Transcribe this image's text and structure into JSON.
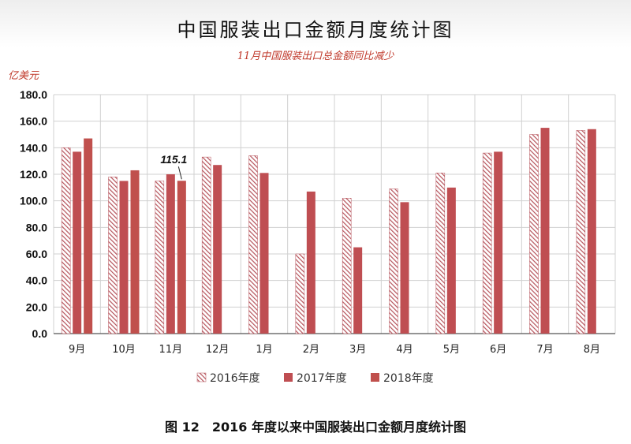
{
  "caption": "图 12　2016 年度以来中国服装出口金额月度统计图",
  "chart_data": {
    "type": "bar",
    "title": "中国服装出口金额月度统计图",
    "subtitle": "11月中国服装出口总金额同比减少",
    "ylabel": "亿美元",
    "xlabel": "",
    "ylim": [
      0,
      180
    ],
    "yticks": [
      "0.0",
      "20.0",
      "40.0",
      "60.0",
      "80.0",
      "100.0",
      "120.0",
      "140.0",
      "160.0",
      "180.0"
    ],
    "grid": true,
    "legend_position": "bottom",
    "categories": [
      "9月",
      "10月",
      "11月",
      "12月",
      "1月",
      "2月",
      "3月",
      "4月",
      "5月",
      "6月",
      "7月",
      "8月"
    ],
    "series": [
      {
        "name": "2016年度",
        "color": "#b5525a",
        "pattern": "hatched",
        "values": [
          140,
          118,
          115,
          133,
          134,
          60,
          102,
          109,
          121,
          136,
          150,
          153
        ]
      },
      {
        "name": "2017年度",
        "color": "#bf4e52",
        "pattern": "solid",
        "values": [
          137,
          115,
          120,
          127,
          121,
          107,
          65,
          99,
          110,
          137,
          155,
          154
        ]
      },
      {
        "name": "2018年度",
        "color": "#c0504d",
        "pattern": "solid",
        "values": [
          147,
          123,
          115.1,
          null,
          null,
          null,
          null,
          null,
          null,
          null,
          null,
          null
        ]
      }
    ],
    "annotations": [
      {
        "text": "115.1",
        "category": "11月",
        "series": "2018年度"
      }
    ]
  }
}
